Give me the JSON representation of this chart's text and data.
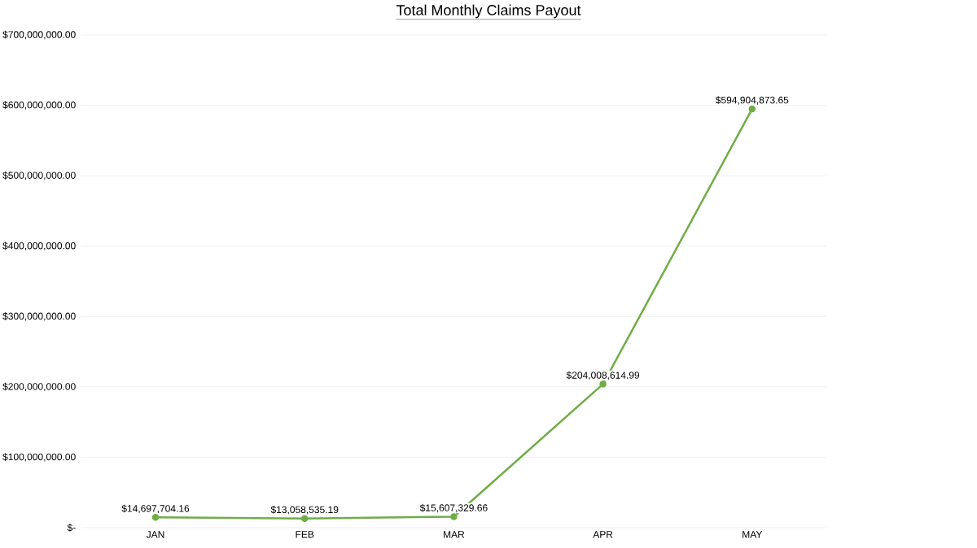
{
  "chart_data": {
    "type": "line",
    "title": "Total Monthly Claims Payout",
    "categories": [
      "JAN",
      "FEB",
      "MAR",
      "APR",
      "MAY"
    ],
    "series": [
      {
        "color": "#70ad47",
        "values": [
          14697704.16,
          13058535.19,
          15607329.66,
          204008614.99,
          594904873.65
        ],
        "value_labels": [
          "$14,697,704.16",
          "$13,058,535.19",
          "$15,607,329.66",
          "$204,008,614.99",
          "$594,904,873.65"
        ]
      }
    ],
    "ylim": [
      0,
      700000000
    ],
    "yticks": [
      {
        "value": 0,
        "label": "$-"
      },
      {
        "value": 100000000,
        "label": "$100,000,000.00"
      },
      {
        "value": 200000000,
        "label": "$200,000,000.00"
      },
      {
        "value": 300000000,
        "label": "$300,000,000.00"
      },
      {
        "value": 400000000,
        "label": "$400,000,000.00"
      },
      {
        "value": 500000000,
        "label": "$500,000,000.00"
      },
      {
        "value": 600000000,
        "label": "$600,000,000.00"
      },
      {
        "value": 700000000,
        "label": "$700,000,000.00"
      }
    ],
    "grid": "y",
    "legend": false,
    "marker": "circle",
    "line_style": "solid"
  }
}
